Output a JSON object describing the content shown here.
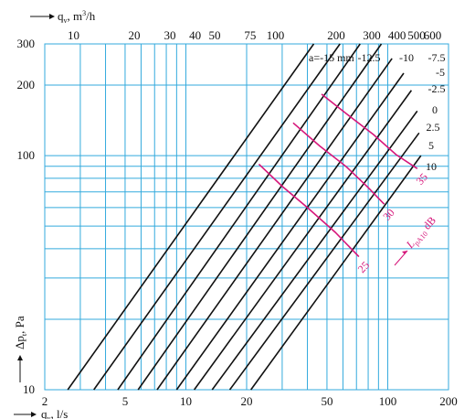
{
  "chart_data": {
    "type": "line",
    "title": "",
    "xlabel": "q",
    "xlabel_sub": "v",
    "xlabel_unit": ", l/s",
    "x2label": "q",
    "x2label_sub": "v",
    "x2label_unit": ", m",
    "x2label_sup": "3",
    "x2label_tail": "/h",
    "ylabel": "Δp",
    "ylabel_sub": "t",
    "ylabel_unit": ", Pa",
    "xscale": "log",
    "yscale": "log",
    "xlim": [
      2,
      200
    ],
    "ylim": [
      10,
      300
    ],
    "x_ticks": [
      2,
      5,
      10,
      20,
      50,
      100,
      200
    ],
    "y_ticks": [
      10,
      100,
      200,
      300
    ],
    "x2_ticks": [
      10,
      20,
      30,
      40,
      50,
      75,
      100,
      200,
      300,
      400,
      500,
      600
    ],
    "x_grid": [
      2,
      3,
      4,
      5,
      6,
      7,
      8,
      9,
      10,
      20,
      30,
      40,
      50,
      60,
      70,
      80,
      90,
      100,
      200
    ],
    "y_grid": [
      10,
      20,
      30,
      40,
      50,
      60,
      70,
      80,
      90,
      100,
      200,
      300
    ],
    "grid": true,
    "grid_color": "#33aadd",
    "series_color": "#111111",
    "annotation_color": "#d6167a",
    "series": [
      {
        "name": "a=-15 mm",
        "values": [
          [
            2.6,
            10
          ],
          [
            43,
            300
          ]
        ]
      },
      {
        "name": "-12.5",
        "values": [
          [
            3.5,
            10
          ],
          [
            58,
            300
          ]
        ]
      },
      {
        "name": "-10",
        "values": [
          [
            4.6,
            10
          ],
          [
            73,
            300
          ]
        ]
      },
      {
        "name": "-7.5",
        "values": [
          [
            5.8,
            10
          ],
          [
            93,
            300
          ]
        ]
      },
      {
        "name": "-5",
        "values": [
          [
            7.2,
            10
          ],
          [
            105,
            260
          ]
        ]
      },
      {
        "name": "-2.5",
        "values": [
          [
            9.0,
            10
          ],
          [
            120,
            225
          ]
        ]
      },
      {
        "name": "0",
        "values": [
          [
            11,
            10
          ],
          [
            131,
            190
          ]
        ]
      },
      {
        "name": "2.5",
        "values": [
          [
            13.5,
            10
          ],
          [
            140,
            155
          ]
        ]
      },
      {
        "name": "5",
        "values": [
          [
            16.5,
            10
          ],
          [
            143,
            125
          ]
        ]
      },
      {
        "name": "10",
        "values": [
          [
            21,
            10
          ],
          [
            146,
            100
          ]
        ]
      }
    ],
    "series_labels": [
      "a=-15 mm",
      "-12.5",
      "-10",
      "-7.5",
      "-5",
      "-2.5",
      "0",
      "2.5",
      "5",
      "10"
    ],
    "sound_curves": [
      {
        "label": "25",
        "values": [
          [
            23,
            92
          ],
          [
            30,
            74
          ],
          [
            40,
            60
          ],
          [
            55,
            47
          ],
          [
            72,
            37
          ]
        ]
      },
      {
        "label": "30",
        "values": [
          [
            34,
            138
          ],
          [
            46,
            110
          ],
          [
            62,
            90
          ],
          [
            80,
            73
          ],
          [
            96,
            62
          ]
        ]
      },
      {
        "label": "35",
        "values": [
          [
            47,
            183
          ],
          [
            63,
            150
          ],
          [
            85,
            123
          ],
          [
            110,
            101
          ],
          [
            140,
            88
          ]
        ]
      }
    ],
    "sound_label_prefix": "L",
    "sound_label_sub": "pA10",
    "sound_label_unit": " dB"
  }
}
